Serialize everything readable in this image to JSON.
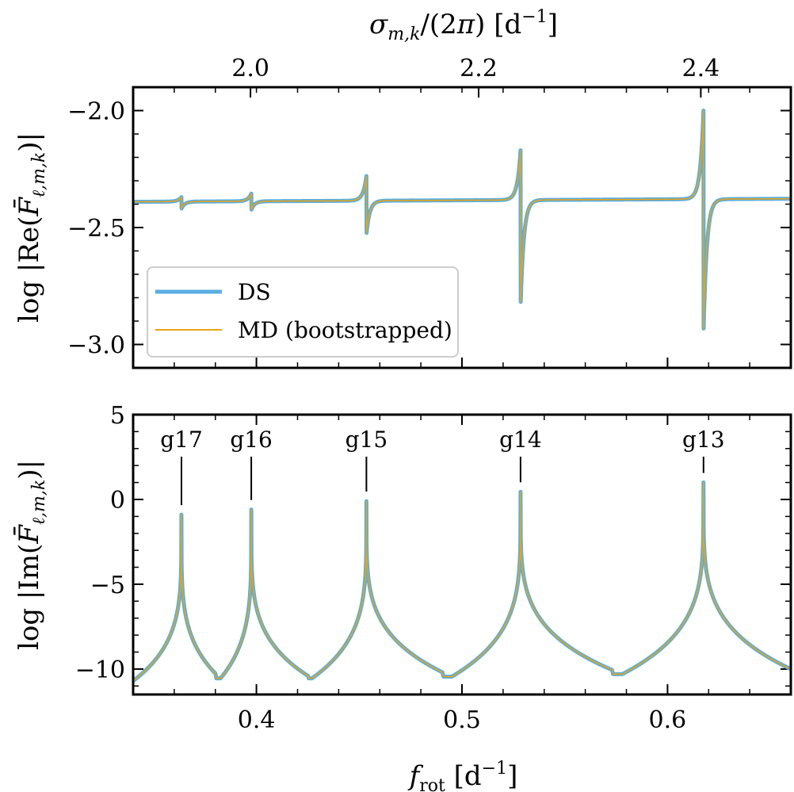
{
  "chart_data": [
    {
      "id": "re",
      "type": "line",
      "ylabel": "log |Re(F̄ℓ,m,k)|",
      "xlim": [
        0.34,
        0.66
      ],
      "ylim": [
        -3.1,
        -1.9
      ],
      "yticks": [
        {
          "value": -2.0,
          "label": "−2.0"
        },
        {
          "value": -2.5,
          "label": "−2.5"
        },
        {
          "value": -3.0,
          "label": "−3.0"
        }
      ],
      "top_axis": {
        "label": "σm,k/(2π) [d⁻¹]",
        "ticks": [
          {
            "f_rot": 0.3971,
            "label": "2.0"
          },
          {
            "f_rot": 0.5081,
            "label": "2.2"
          },
          {
            "f_rot": 0.6162,
            "label": "2.4"
          }
        ]
      },
      "baseline": [
        [
          0.34,
          -2.39
        ],
        [
          0.66,
          -2.377
        ]
      ],
      "resonances": [
        {
          "x": 0.3635,
          "up": -2.37,
          "down": -2.42
        },
        {
          "x": 0.3975,
          "up": -2.355,
          "down": -2.425
        },
        {
          "x": 0.4535,
          "up": -2.28,
          "down": -2.53
        },
        {
          "x": 0.5285,
          "up": -2.17,
          "down": -2.84
        },
        {
          "x": 0.6175,
          "up": -2.0,
          "down": -2.96
        }
      ],
      "series": [
        {
          "name": "DS",
          "color": "#5aaee0"
        },
        {
          "name": "MD (bootstrapped)",
          "color": "#e8a317"
        }
      ],
      "legend_position": "lower-left"
    },
    {
      "id": "im",
      "type": "line",
      "xlabel": "frot [d⁻¹]",
      "ylabel": "log |Im(F̄ℓ,m,k)|",
      "xlim": [
        0.34,
        0.66
      ],
      "ylim": [
        -11.5,
        5.0
      ],
      "xticks": [
        {
          "value": 0.4,
          "label": "0.4"
        },
        {
          "value": 0.5,
          "label": "0.5"
        },
        {
          "value": 0.6,
          "label": "0.6"
        }
      ],
      "yticks": [
        {
          "value": 5,
          "label": "5"
        },
        {
          "value": 0,
          "label": "0"
        },
        {
          "value": -5,
          "label": "−5"
        },
        {
          "value": -10,
          "label": "−10"
        }
      ],
      "peaks": [
        {
          "x": 0.3635,
          "y": -0.9,
          "mode": "g17"
        },
        {
          "x": 0.3975,
          "y": -0.6,
          "mode": "g16"
        },
        {
          "x": 0.4535,
          "y": -0.1,
          "mode": "g15"
        },
        {
          "x": 0.5285,
          "y": 0.45,
          "mode": "g14"
        },
        {
          "x": 0.6175,
          "y": 1.0,
          "mode": "g13"
        }
      ],
      "valleys": [
        {
          "x": 0.34,
          "y": -10.7
        },
        {
          "x": 0.3825,
          "y": -10.55
        },
        {
          "x": 0.427,
          "y": -10.55
        },
        {
          "x": 0.495,
          "y": -10.45
        },
        {
          "x": 0.578,
          "y": -10.3
        },
        {
          "x": 0.66,
          "y": -10.0
        }
      ],
      "series": [
        {
          "name": "DS",
          "color": "#5aaee0"
        },
        {
          "name": "MD (bootstrapped)",
          "color": "#e8a317"
        }
      ]
    }
  ]
}
